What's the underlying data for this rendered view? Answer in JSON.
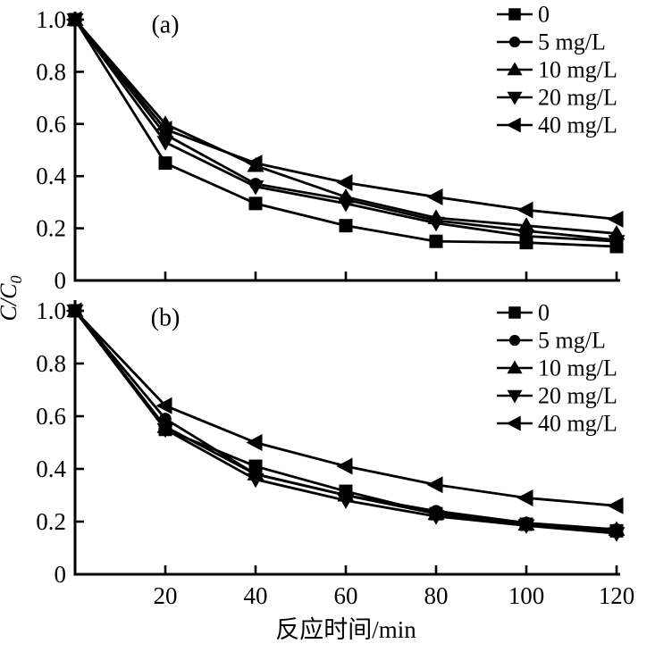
{
  "figure": {
    "background": "#ffffff",
    "ink": "#000000",
    "xlabel": "反应时间/min",
    "ylabel": {
      "main": "C/C",
      "sub": "0"
    }
  },
  "chart_data": [
    {
      "type": "line",
      "panel_id": "a",
      "panel_label": "(a)",
      "x": [
        0,
        20,
        40,
        60,
        80,
        100,
        120
      ],
      "xticks": [
        "20",
        "40",
        "60",
        "80",
        "100",
        "120"
      ],
      "show_x_tick_labels": false,
      "yticks": [
        "1.0",
        "0.8",
        "0.6",
        "0.4",
        "0.2",
        "0"
      ],
      "xlim": [
        0,
        122
      ],
      "ylim": [
        0,
        1.0
      ],
      "grid": false,
      "legend_position": "top-right",
      "series": [
        {
          "name": "0",
          "marker": "square",
          "color": "#000000",
          "values": [
            1.0,
            0.45,
            0.295,
            0.21,
            0.15,
            0.145,
            0.13
          ]
        },
        {
          "name": "5 mg/L",
          "marker": "circle",
          "color": "#000000",
          "values": [
            1.0,
            0.56,
            0.37,
            0.31,
            0.23,
            0.19,
            0.155
          ]
        },
        {
          "name": "10 mg/L",
          "marker": "triangle-up",
          "color": "#000000",
          "values": [
            1.0,
            0.6,
            0.44,
            0.32,
            0.24,
            0.21,
            0.18
          ]
        },
        {
          "name": "20 mg/L",
          "marker": "triangle-down",
          "color": "#000000",
          "values": [
            1.0,
            0.53,
            0.36,
            0.295,
            0.22,
            0.17,
            0.15
          ]
        },
        {
          "name": "40 mg/L",
          "marker": "triangle-left",
          "color": "#000000",
          "values": [
            1.0,
            0.58,
            0.45,
            0.375,
            0.32,
            0.27,
            0.235
          ]
        }
      ]
    },
    {
      "type": "line",
      "panel_id": "b",
      "panel_label": "(b)",
      "x": [
        0,
        20,
        40,
        60,
        80,
        100,
        120
      ],
      "xticks": [
        "20",
        "40",
        "60",
        "80",
        "100",
        "120"
      ],
      "show_x_tick_labels": true,
      "yticks": [
        "1.0",
        "0.8",
        "0.6",
        "0.4",
        "0.2",
        "0"
      ],
      "xlim": [
        0,
        122
      ],
      "ylim": [
        0,
        1.0
      ],
      "grid": false,
      "legend_position": "top-right",
      "series": [
        {
          "name": "0",
          "marker": "square",
          "color": "#000000",
          "values": [
            1.0,
            0.55,
            0.41,
            0.315,
            0.23,
            0.19,
            0.165
          ]
        },
        {
          "name": "5 mg/L",
          "marker": "circle",
          "color": "#000000",
          "values": [
            1.0,
            0.59,
            0.38,
            0.3,
            0.24,
            0.195,
            0.17
          ]
        },
        {
          "name": "10 mg/L",
          "marker": "triangle-up",
          "color": "#000000",
          "values": [
            1.0,
            0.56,
            0.38,
            0.3,
            0.23,
            0.19,
            0.17
          ]
        },
        {
          "name": "20 mg/L",
          "marker": "triangle-down",
          "color": "#000000",
          "values": [
            1.0,
            0.55,
            0.36,
            0.28,
            0.22,
            0.185,
            0.155
          ]
        },
        {
          "name": "40 mg/L",
          "marker": "triangle-left",
          "color": "#000000",
          "values": [
            1.0,
            0.64,
            0.5,
            0.41,
            0.34,
            0.29,
            0.26
          ]
        }
      ]
    }
  ]
}
